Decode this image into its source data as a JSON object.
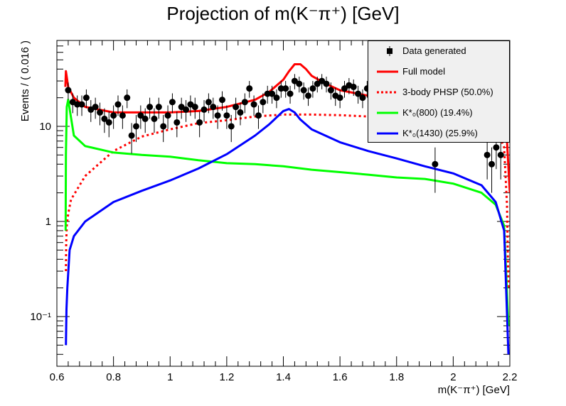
{
  "chart_data": {
    "type": "line",
    "title": "Projection of m(K⁻π⁺) [GeV]",
    "xlabel": "m(K⁻π⁺) [GeV]",
    "ylabel": "Events / ( 0.016 )",
    "xlim": [
      0.6,
      2.2
    ],
    "ylim": [
      0.03,
      80
    ],
    "yscale": "log",
    "x_ticks": [
      "0.6",
      "0.8",
      "1",
      "1.2",
      "1.4",
      "1.6",
      "1.8",
      "2",
      "2.2"
    ],
    "y_ticks": [
      "10⁻¹",
      "1",
      "10"
    ],
    "legend_position": "top-right",
    "legend": [
      {
        "label": "Data generated",
        "style": "marker",
        "color": "#000000"
      },
      {
        "label": "Full model",
        "style": "solid",
        "color": "#ff0000"
      },
      {
        "label": "3-body PHSP (50.0%)",
        "style": "dotted",
        "color": "#ff0000"
      },
      {
        "label": "K*₀(800) (19.4%)",
        "style": "solid",
        "color": "#00ff00"
      },
      {
        "label": "K*₀(1430) (25.9%)",
        "style": "solid",
        "color": "#0000ff"
      }
    ],
    "data_points": {
      "x": [
        0.64,
        0.656,
        0.672,
        0.688,
        0.704,
        0.72,
        0.736,
        0.752,
        0.768,
        0.784,
        0.8,
        0.816,
        0.832,
        0.848,
        0.864,
        0.88,
        0.896,
        0.912,
        0.928,
        0.944,
        0.96,
        0.976,
        0.992,
        1.008,
        1.024,
        1.04,
        1.056,
        1.072,
        1.088,
        1.104,
        1.12,
        1.136,
        1.152,
        1.168,
        1.184,
        1.2,
        1.216,
        1.232,
        1.248,
        1.264,
        1.28,
        1.296,
        1.312,
        1.328,
        1.344,
        1.36,
        1.376,
        1.392,
        1.408,
        1.424,
        1.44,
        1.456,
        1.472,
        1.488,
        1.504,
        1.52,
        1.536,
        1.552,
        1.568,
        1.584,
        1.6,
        1.616,
        1.632,
        1.648,
        1.664,
        1.68,
        1.696,
        1.936,
        2.12,
        2.136,
        2.152,
        2.168
      ],
      "y": [
        24,
        18,
        17,
        17,
        20,
        15,
        16,
        14,
        12,
        11,
        13,
        17,
        13,
        20,
        8,
        10,
        13,
        12,
        16,
        12,
        16,
        10,
        13,
        18,
        11,
        16,
        15,
        17,
        16,
        11,
        15,
        18,
        16,
        13,
        19,
        13,
        10,
        16,
        14,
        18,
        25,
        17,
        13,
        18,
        22,
        22,
        20,
        25,
        25,
        22,
        30,
        28,
        24,
        21,
        25,
        28,
        30,
        28,
        24,
        21,
        20,
        25,
        27,
        26,
        22,
        20,
        25,
        4,
        5,
        4,
        6,
        5
      ]
    },
    "series": [
      {
        "name": "Full model",
        "x": [
          0.63,
          0.632,
          0.64,
          0.66,
          0.7,
          0.8,
          0.9,
          1.0,
          1.1,
          1.2,
          1.3,
          1.35,
          1.4,
          1.42,
          1.44,
          1.46,
          1.48,
          1.5,
          1.55,
          1.6,
          1.7,
          1.8,
          1.9,
          2.0,
          2.1,
          2.16,
          2.18,
          2.19,
          2.2
        ],
        "y": [
          26,
          38,
          26,
          20,
          16,
          14,
          14,
          14,
          14.5,
          16,
          19,
          23,
          31,
          38,
          45,
          45,
          40,
          34,
          28,
          24,
          21,
          20,
          19,
          18,
          17,
          15,
          12,
          7,
          2
        ]
      },
      {
        "name": "3-body PHSP (50.0%)",
        "x": [
          0.632,
          0.633,
          0.635,
          0.64,
          0.65,
          0.7,
          0.8,
          0.9,
          1.0,
          1.1,
          1.2,
          1.3,
          1.4,
          1.5,
          1.6,
          1.7,
          1.8,
          1.9,
          2.0,
          2.1,
          2.15,
          2.18,
          2.19,
          2.195
        ],
        "y": [
          0.3,
          0.6,
          0.9,
          1.2,
          1.7,
          3.0,
          5.5,
          7.8,
          9.3,
          10.8,
          11.6,
          12.7,
          13.3,
          13.3,
          13.1,
          12.7,
          12.4,
          12.1,
          11.8,
          11.2,
          10.0,
          6.0,
          1.5,
          0.2
        ]
      },
      {
        "name": "K*₀(800) (19.4%)",
        "x": [
          0.631,
          0.632,
          0.635,
          0.64,
          0.66,
          0.7,
          0.8,
          0.9,
          1.0,
          1.1,
          1.2,
          1.3,
          1.4,
          1.5,
          1.6,
          1.7,
          1.8,
          1.9,
          2.0,
          2.1,
          2.15,
          2.18,
          2.195
        ],
        "y": [
          0.8,
          5,
          16,
          19,
          8,
          6.2,
          5.3,
          5,
          4.8,
          4.4,
          4.1,
          4,
          3.8,
          3.5,
          3.3,
          3.1,
          2.9,
          2.8,
          2.5,
          2.0,
          1.5,
          0.9,
          0.08
        ]
      },
      {
        "name": "K*₀(1430) (25.9%)",
        "x": [
          0.632,
          0.634,
          0.637,
          0.645,
          0.66,
          0.7,
          0.8,
          0.9,
          1.0,
          1.1,
          1.2,
          1.3,
          1.35,
          1.4,
          1.42,
          1.44,
          1.46,
          1.5,
          1.6,
          1.7,
          1.8,
          1.9,
          2.0,
          2.1,
          2.15,
          2.18,
          2.195
        ],
        "y": [
          0.05,
          0.12,
          0.2,
          0.5,
          0.7,
          1.0,
          1.6,
          2.1,
          2.7,
          3.6,
          5.1,
          8.0,
          10.5,
          14.5,
          15.2,
          14.0,
          11.8,
          9.3,
          6.8,
          5.5,
          4.6,
          3.8,
          3.2,
          2.4,
          1.6,
          0.8,
          0.04
        ]
      }
    ]
  }
}
